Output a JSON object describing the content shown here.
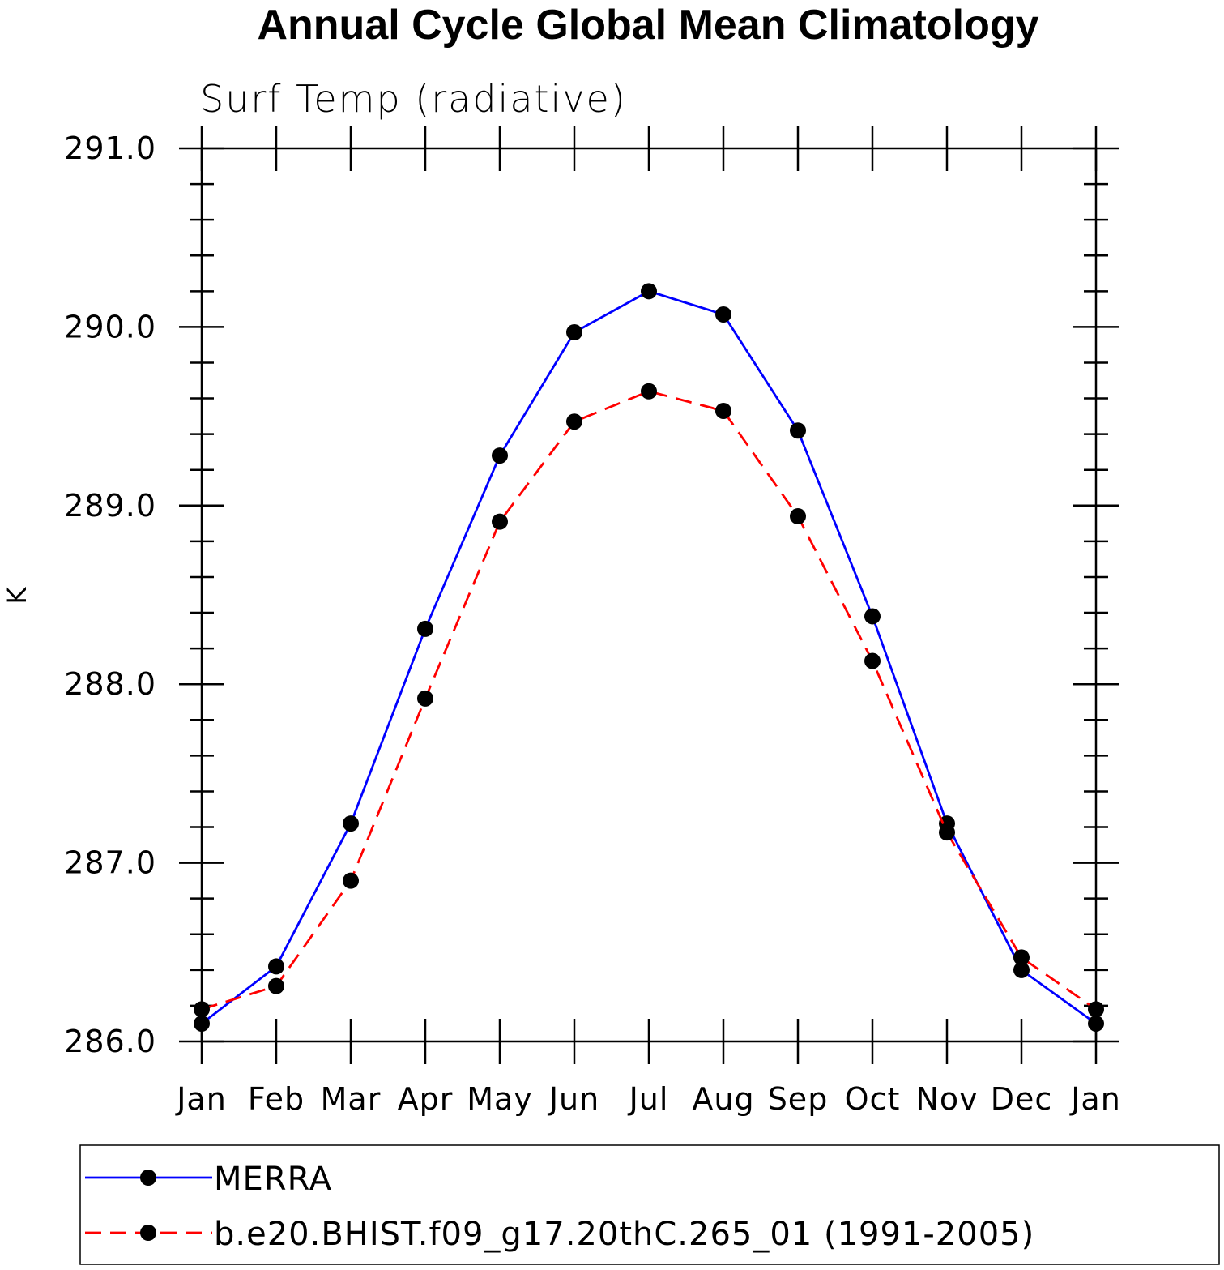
{
  "chart_data": {
    "type": "line",
    "title": "Annual Cycle Global Mean Climatology",
    "subtitle": "Surf Temp (radiative)",
    "ylabel": "K",
    "xlabel": "",
    "ylim": [
      286.0,
      291.0
    ],
    "yticks": [
      "286.0",
      "287.0",
      "288.0",
      "289.0",
      "290.0",
      "291.0"
    ],
    "categories": [
      "Jan",
      "Feb",
      "Mar",
      "Apr",
      "May",
      "Jun",
      "Jul",
      "Aug",
      "Sep",
      "Oct",
      "Nov",
      "Dec",
      "Jan"
    ],
    "grid": false,
    "legend_placement": "bottom",
    "series": [
      {
        "name": "MERRA",
        "color": "#0000ff",
        "style": "solid",
        "marker": "filled-circle",
        "values": [
          286.1,
          286.42,
          287.22,
          288.31,
          289.28,
          289.97,
          290.2,
          290.07,
          289.42,
          288.38,
          287.22,
          286.4,
          286.1
        ]
      },
      {
        "name": "b.e20.BHIST.f09_g17.20thC.265_01 (1991-2005)",
        "color": "#ff0000",
        "style": "dashed",
        "marker": "filled-circle",
        "values": [
          286.18,
          286.31,
          286.9,
          287.92,
          288.91,
          289.47,
          289.64,
          289.53,
          288.94,
          288.13,
          287.17,
          286.47,
          286.18
        ]
      }
    ]
  }
}
